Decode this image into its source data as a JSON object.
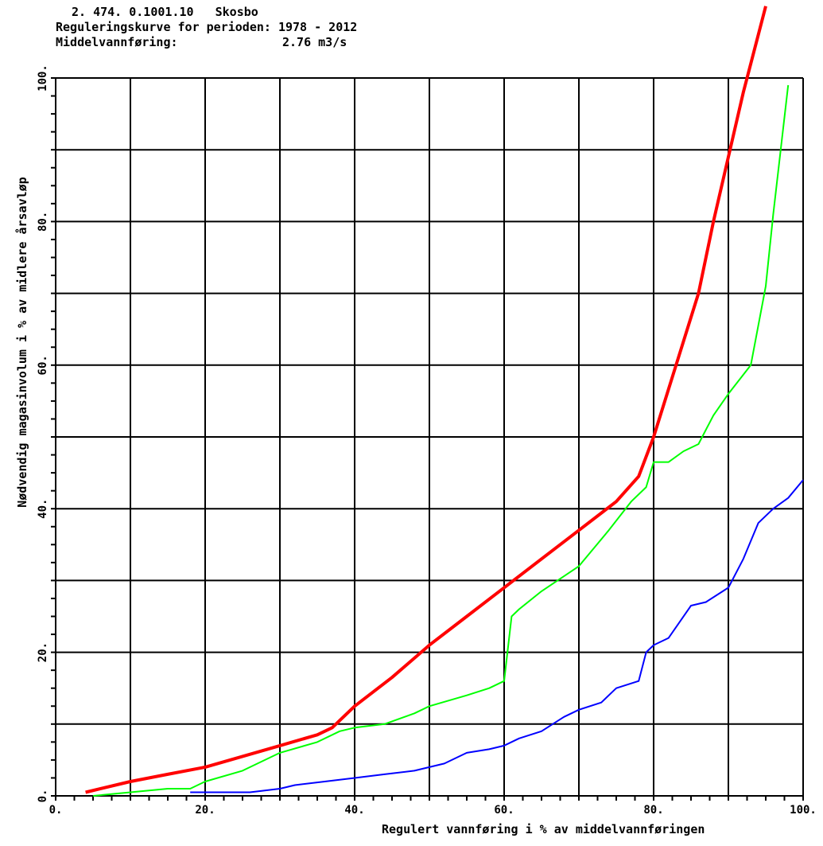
{
  "header": {
    "title": "2. 474. 0.1001.10   Skosbo",
    "subtitle": "Reguleringskurve for perioden: 1978 - 2012",
    "mean_label": "Middelvannføring:",
    "mean_value": "2.76 m3/s"
  },
  "chart_data": {
    "type": "line",
    "xlabel": "Regulert vannføring i % av middelvannføringen",
    "ylabel": "Nødvendig magasinvolum i % av midlere årsavløp",
    "xlim": [
      0,
      100
    ],
    "ylim": [
      0,
      100
    ],
    "x_ticks": [
      "0.",
      "20.",
      "40.",
      "60.",
      "80.",
      "100."
    ],
    "y_ticks": [
      "0.",
      "20.",
      "40.",
      "60.",
      "80.",
      "100."
    ],
    "grid": true,
    "series": [
      {
        "color": "#ff0000",
        "x": [
          4,
          10,
          15,
          20,
          25,
          30,
          35,
          37,
          40,
          45,
          50,
          55,
          60,
          65,
          70,
          75,
          78,
          80,
          83,
          86,
          88,
          90,
          92,
          94,
          95
        ],
        "y": [
          0.5,
          2,
          3,
          4,
          5.5,
          7,
          8.5,
          9.5,
          12.5,
          16.5,
          21,
          25,
          29,
          33,
          37,
          41,
          44.5,
          50,
          60,
          70,
          80,
          89,
          98,
          106,
          110
        ]
      },
      {
        "color": "#00ff00",
        "x": [
          5,
          10,
          15,
          18,
          20,
          25,
          28,
          30,
          35,
          38,
          40,
          44,
          48,
          50,
          55,
          58,
          60,
          61,
          62,
          65,
          70,
          74,
          77,
          79,
          80,
          82,
          84,
          86,
          88,
          90,
          93,
          95,
          96,
          98
        ],
        "y": [
          0,
          0.5,
          1,
          1,
          2,
          3.5,
          5,
          6,
          7.5,
          9,
          9.5,
          10,
          11.5,
          12.5,
          14,
          15,
          16,
          25,
          26,
          28.5,
          32,
          37,
          41,
          43,
          46.5,
          46.5,
          48,
          49,
          53,
          56,
          60,
          71,
          81,
          99
        ]
      },
      {
        "color": "#0000ff",
        "x": [
          18,
          22,
          26,
          30,
          32,
          36,
          40,
          44,
          48,
          50,
          52,
          55,
          58,
          60,
          62,
          65,
          68,
          70,
          73,
          75,
          78,
          79,
          80,
          82,
          85,
          87,
          90,
          92,
          94,
          96,
          98,
          100
        ],
        "y": [
          0.5,
          0.5,
          0.5,
          1,
          1.5,
          2,
          2.5,
          3,
          3.5,
          4,
          4.5,
          6,
          6.5,
          7,
          8,
          9,
          11,
          12,
          13,
          15,
          16,
          20,
          21,
          22,
          26.5,
          27,
          29,
          33,
          38,
          40,
          41.5,
          44
        ]
      }
    ]
  }
}
